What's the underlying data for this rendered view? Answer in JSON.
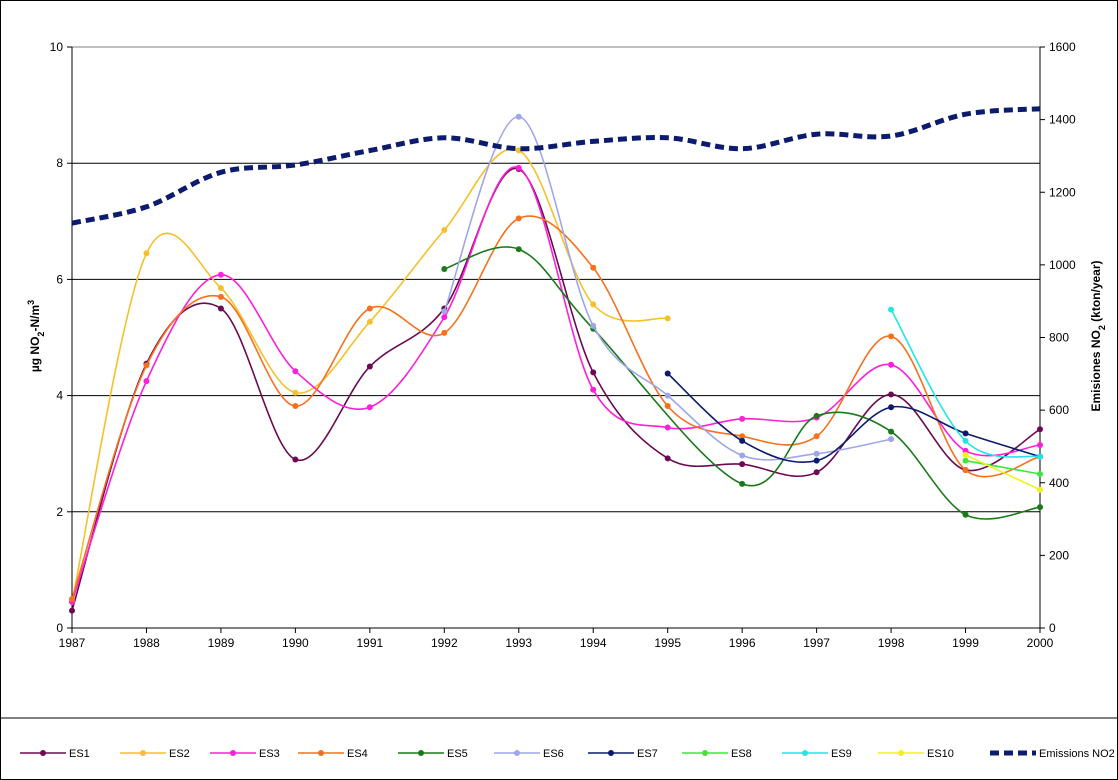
{
  "chart_data": {
    "type": "line",
    "x": [
      1987,
      1988,
      1989,
      1990,
      1991,
      1992,
      1993,
      1994,
      1995,
      1996,
      1997,
      1998,
      1999,
      2000
    ],
    "x_tick_labels": [
      "1987",
      "1988",
      "1989",
      "1990",
      "1991",
      "1992",
      "1993",
      "1994",
      "1995",
      "1996",
      "1997",
      "1998",
      "1999",
      "2000"
    ],
    "ylabel": "µg NO₂-N/m³",
    "ylabel_parts": {
      "a": "µg NO",
      "sub": "2",
      "b": "-N/m",
      "sup": "3"
    },
    "y2label": "Emisiones NO₂ (kton/year)",
    "y2label_parts": {
      "a": "Emisiones NO",
      "sub": "2",
      "b": " (kton/year)"
    },
    "ylim": [
      0,
      10
    ],
    "y_ticks": [
      0,
      2,
      4,
      6,
      8,
      10
    ],
    "y2lim": [
      0,
      1600
    ],
    "y2_ticks": [
      0,
      200,
      400,
      600,
      800,
      1000,
      1200,
      1400,
      1600
    ],
    "grid": "horizontal major lines at 2, 4, 6, 8",
    "legend_position": "bottom",
    "series": [
      {
        "name": "ES1",
        "color": "#6b0a53",
        "axis": "left",
        "values": [
          0.3,
          4.55,
          5.5,
          2.9,
          4.5,
          5.5,
          7.9,
          4.4,
          2.92,
          2.82,
          2.68,
          4.02,
          2.72,
          3.42
        ]
      },
      {
        "name": "ES2",
        "color": "#f5c12b",
        "axis": "left",
        "values": [
          0.45,
          6.45,
          5.85,
          4.05,
          5.27,
          6.85,
          8.22,
          5.57,
          5.33,
          null,
          null,
          null,
          null,
          null
        ]
      },
      {
        "name": "ES3",
        "color": "#ff1ed9",
        "axis": "left",
        "values": [
          0.45,
          4.25,
          6.08,
          4.42,
          3.8,
          5.35,
          7.92,
          4.1,
          3.45,
          3.6,
          3.62,
          4.53,
          3.05,
          3.15
        ]
      },
      {
        "name": "ES4",
        "color": "#f7701c",
        "axis": "left",
        "values": [
          0.5,
          4.52,
          5.7,
          3.82,
          5.5,
          5.08,
          7.05,
          6.2,
          3.82,
          3.3,
          3.3,
          5.02,
          2.72,
          2.95
        ]
      },
      {
        "name": "ES5",
        "color": "#1a7a1a",
        "axis": "left",
        "values": [
          null,
          null,
          null,
          null,
          null,
          6.18,
          6.52,
          5.15,
          null,
          2.48,
          3.65,
          3.38,
          1.95,
          2.08
        ]
      },
      {
        "name": "ES6",
        "color": "#9fa6ea",
        "axis": "left",
        "values": [
          null,
          null,
          null,
          null,
          null,
          5.45,
          8.8,
          5.2,
          4.0,
          2.97,
          3.0,
          3.25,
          null,
          null
        ]
      },
      {
        "name": "ES7",
        "color": "#0c1b6e",
        "axis": "left",
        "values": [
          null,
          null,
          null,
          null,
          null,
          null,
          null,
          null,
          4.38,
          3.22,
          2.88,
          3.8,
          3.35,
          2.95
        ]
      },
      {
        "name": "ES8",
        "color": "#3de63d",
        "axis": "left",
        "values": [
          null,
          null,
          null,
          null,
          null,
          null,
          null,
          null,
          null,
          null,
          null,
          null,
          2.88,
          2.65
        ]
      },
      {
        "name": "ES9",
        "color": "#21e6e6",
        "axis": "left",
        "values": [
          null,
          null,
          null,
          null,
          null,
          null,
          null,
          null,
          null,
          null,
          null,
          5.48,
          3.22,
          2.95
        ]
      },
      {
        "name": "ES10",
        "color": "#f2f21a",
        "axis": "left",
        "values": [
          null,
          null,
          null,
          null,
          null,
          null,
          null,
          null,
          null,
          null,
          null,
          null,
          2.98,
          2.38
        ]
      },
      {
        "name": "Emissions NO2",
        "color": "#0c1b6e",
        "axis": "right",
        "style": "dashed",
        "values": [
          1115,
          1160,
          1255,
          1275,
          1315,
          1350,
          1320,
          1340,
          1350,
          1320,
          1360,
          1355,
          1415,
          1430
        ]
      }
    ]
  }
}
